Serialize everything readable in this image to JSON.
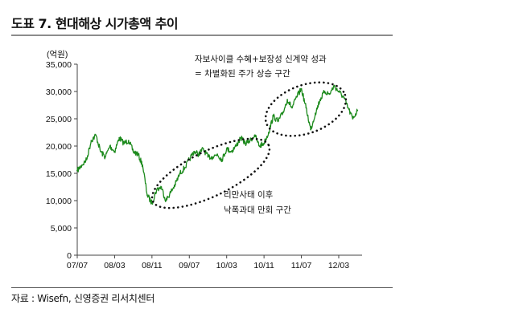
{
  "title": "도표 7. 현대해상 시가총액 추이",
  "source": "자료 : Wisefn, 신영증권 리서치센터",
  "chart_data": {
    "type": "line",
    "ylabel": "(억원)",
    "xlabel": "",
    "ylim": [
      0,
      35000
    ],
    "yticks": [
      0,
      5000,
      10000,
      15000,
      20000,
      25000,
      30000,
      35000
    ],
    "ytick_labels": [
      "0",
      "5,000",
      "10,000",
      "15,000",
      "20,000",
      "25,000",
      "30,000",
      "35,000"
    ],
    "xlim": [
      "2007-07",
      "2012-08"
    ],
    "xtick_labels": [
      "07/07",
      "08/03",
      "08/11",
      "09/07",
      "10/03",
      "10/11",
      "11/07",
      "12/03"
    ],
    "grid": false,
    "line_color": "#1c8a1c",
    "series": [
      {
        "x": [
          "2007-07",
          "2007-08",
          "2007-09",
          "2007-10",
          "2007-11",
          "2007-12",
          "2008-01",
          "2008-02",
          "2008-03",
          "2008-04",
          "2008-05",
          "2008-06",
          "2008-07",
          "2008-08",
          "2008-09",
          "2008-10",
          "2008-11",
          "2008-12",
          "2009-01",
          "2009-02",
          "2009-03",
          "2009-04",
          "2009-05",
          "2009-06",
          "2009-07",
          "2009-08",
          "2009-09",
          "2009-10",
          "2009-11",
          "2009-12",
          "2010-01",
          "2010-02",
          "2010-03",
          "2010-04",
          "2010-05",
          "2010-06",
          "2010-07",
          "2010-08",
          "2010-09",
          "2010-10",
          "2010-11",
          "2010-12",
          "2011-01",
          "2011-02",
          "2011-03",
          "2011-04",
          "2011-05",
          "2011-06",
          "2011-07",
          "2011-08",
          "2011-09",
          "2011-10",
          "2011-11",
          "2011-12",
          "2012-01",
          "2012-02",
          "2012-03",
          "2012-04",
          "2012-05",
          "2012-06",
          "2012-07"
        ],
        "values": [
          15500,
          16500,
          17500,
          21000,
          22000,
          19000,
          18000,
          20000,
          19000,
          21500,
          20500,
          21000,
          19000,
          18500,
          16500,
          11000,
          9500,
          12000,
          12500,
          10000,
          11500,
          13000,
          15000,
          16000,
          17500,
          19000,
          18500,
          19500,
          18000,
          18000,
          18500,
          17500,
          19500,
          19000,
          20000,
          21500,
          20500,
          21000,
          22000,
          20000,
          20500,
          22500,
          25500,
          24500,
          26000,
          28500,
          27000,
          29000,
          30500,
          27000,
          23000,
          26000,
          28500,
          30000,
          29500,
          31000,
          30000,
          29000,
          27000,
          25000,
          26500
        ]
      }
    ],
    "annotations": [
      {
        "lines": [
          "자보사이클 수혜+보장성 신계약 성과",
          "= 차별화된 주가 상승 구간"
        ]
      },
      {
        "lines": [
          "리만사태 이후",
          "낙폭과대 만회 구간"
        ]
      }
    ]
  }
}
